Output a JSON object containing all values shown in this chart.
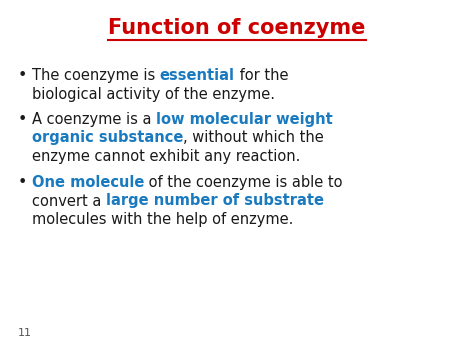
{
  "title": "Function of coenzyme",
  "title_color": "#cc0000",
  "title_fontsize": 15,
  "title_fontweight": "bold",
  "background_color": "#ffffff",
  "page_number": "11",
  "bullet_color": "#1a1a1a",
  "bullet_fontsize": 10.5,
  "blue_color": "#1a7abf",
  "dark_color": "#1a1a1a",
  "bullets": [
    {
      "lines": [
        [
          {
            "text": "The coenzyme is ",
            "color": "#1a1a1a",
            "bold": false
          },
          {
            "text": "essential",
            "color": "#1a7abf",
            "bold": true
          },
          {
            "text": " for the",
            "color": "#1a1a1a",
            "bold": false
          }
        ],
        [
          {
            "text": "biological activity of the enzyme.",
            "color": "#1a1a1a",
            "bold": false
          }
        ]
      ]
    },
    {
      "lines": [
        [
          {
            "text": "A coenzyme is a ",
            "color": "#1a1a1a",
            "bold": false
          },
          {
            "text": "low molecular weight",
            "color": "#1a7abf",
            "bold": true
          }
        ],
        [
          {
            "text": "organic substance",
            "color": "#1a7abf",
            "bold": true
          },
          {
            "text": ", without which the",
            "color": "#1a1a1a",
            "bold": false
          }
        ],
        [
          {
            "text": "enzyme cannot exhibit any reaction.",
            "color": "#1a1a1a",
            "bold": false
          }
        ]
      ]
    },
    {
      "lines": [
        [
          {
            "text": "One molecule",
            "color": "#1a7abf",
            "bold": true
          },
          {
            "text": " of the coenzyme is able to",
            "color": "#1a1a1a",
            "bold": false
          }
        ],
        [
          {
            "text": "convert a ",
            "color": "#1a1a1a",
            "bold": false
          },
          {
            "text": "large number of substrate",
            "color": "#1a7abf",
            "bold": true
          }
        ],
        [
          {
            "text": "molecules with the help of enzyme.",
            "color": "#1a1a1a",
            "bold": false
          }
        ]
      ]
    }
  ]
}
